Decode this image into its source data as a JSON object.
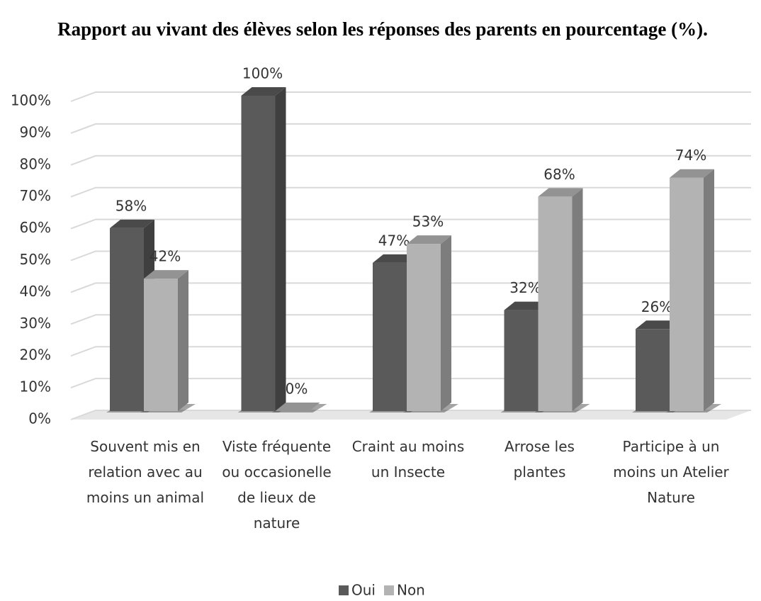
{
  "chart_data": {
    "type": "bar3d",
    "title": "Rapport au vivant des élèves selon les réponses des parents en pourcentage (%).",
    "categories": [
      "Souvent mis en relation avec au moins un animal",
      "Viste fréquente ou occasionelle de lieux de nature",
      "Craint au moins un Insecte",
      "Arrose les plantes",
      "Participe à un moins un Atelier Nature"
    ],
    "series": [
      {
        "name": "Oui",
        "color": "#5a5a5a",
        "values": [
          58,
          100,
          47,
          32,
          26
        ],
        "value_labels": [
          "58%",
          "100%",
          "47%",
          "32%",
          "26%"
        ]
      },
      {
        "name": "Non",
        "color": "#b3b3b3",
        "values": [
          42,
          0,
          53,
          68,
          74
        ],
        "value_labels": [
          "42%",
          "0%",
          "53%",
          "68%",
          "74%"
        ]
      }
    ],
    "ylim": [
      0,
      100
    ],
    "yticks": [
      {
        "value": 0,
        "label": "0%"
      },
      {
        "value": 10,
        "label": "10%"
      },
      {
        "value": 20,
        "label": "20%"
      },
      {
        "value": 30,
        "label": "30%"
      },
      {
        "value": 40,
        "label": "40%"
      },
      {
        "value": 50,
        "label": "50%"
      },
      {
        "value": 60,
        "label": "60%"
      },
      {
        "value": 70,
        "label": "70%"
      },
      {
        "value": 80,
        "label": "80%"
      },
      {
        "value": 90,
        "label": "90%"
      },
      {
        "value": 100,
        "label": "100%"
      }
    ],
    "grid": true,
    "legend": "bottom"
  }
}
